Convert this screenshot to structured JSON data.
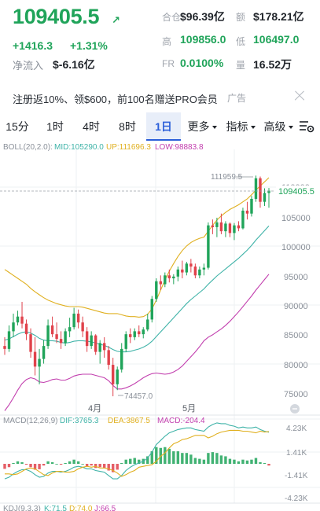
{
  "header": {
    "price": "109405.5",
    "price_arrow": "↗",
    "change_abs": "+1416.3",
    "change_pct": "+1.31%",
    "netflow_label": "净流入",
    "netflow_value": "$-6.16亿"
  },
  "stats": {
    "hold_label": "合仓",
    "hold_value": "$96.39亿",
    "amount_label": "额",
    "amount_value": "$178.21亿",
    "high_label": "高",
    "high_value": "109856.0",
    "low_label": "低",
    "low_value": "106497.0",
    "fr_label": "FR",
    "fr_value": "0.0100%",
    "volume_label": "量",
    "volume_value": "16.52万"
  },
  "ad": {
    "text": "注册返10%、领$600，前100名赠送PRO会员",
    "tag": "广告"
  },
  "tabs": [
    "15分",
    "1时",
    "4时",
    "8时",
    "1日",
    "更多",
    "指标",
    "高级"
  ],
  "active_tab": "1日",
  "boll": {
    "name": "BOLL(20,2.0):",
    "mid": "MID:105290.0",
    "up": "UP:111696.3",
    "low": "LOW:98883.8"
  },
  "price_axis": [
    "110000",
    "105000",
    "100000",
    "95000",
    "90000",
    "85000",
    "80000",
    "75000"
  ],
  "current_price_label": "109405.5",
  "max_label": "111959.5",
  "min_label": "74457.0",
  "date_labels": [
    "4月",
    "5月"
  ],
  "macd": {
    "name": "MACD(12,26,9)",
    "dif": "DIF:3765.3",
    "dea": "DEA:3867.5",
    "macd": "MACD:-204.4",
    "axis": [
      "4.23K",
      "1.41K",
      "-1.41K",
      "-4.23K"
    ]
  },
  "kdj": {
    "name": "KDJ(9,3,3)",
    "k": "K:71.5",
    "d": "D:74.0",
    "j": "J:66.5"
  },
  "colors": {
    "up": "#20a45a",
    "down": "#e0424b",
    "mid": "#3fb3a8",
    "upper": "#e0b020",
    "lower": "#c23fae",
    "accent": "#2b5fd9"
  },
  "chart_data": {
    "type": "candlestick",
    "ohlc": [
      [
        83000,
        84500,
        81500,
        82500
      ],
      [
        82500,
        86500,
        82000,
        85500
      ],
      [
        85500,
        88500,
        84500,
        87000
      ],
      [
        87000,
        89000,
        86500,
        88000
      ],
      [
        88000,
        90500,
        86000,
        86800
      ],
      [
        86800,
        87500,
        84000,
        85000
      ],
      [
        85000,
        86000,
        81000,
        82000
      ],
      [
        82000,
        84500,
        78000,
        79500
      ],
      [
        79500,
        82500,
        76500,
        80800
      ],
      [
        80800,
        84000,
        80000,
        83000
      ],
      [
        83000,
        87500,
        82500,
        86500
      ],
      [
        86500,
        88000,
        84500,
        85000
      ],
      [
        85000,
        87000,
        83500,
        84200
      ],
      [
        84200,
        85500,
        82500,
        83500
      ],
      [
        83500,
        86000,
        83000,
        85500
      ],
      [
        85500,
        87800,
        84500,
        86200
      ],
      [
        86200,
        89500,
        85800,
        88500
      ],
      [
        88500,
        89200,
        86000,
        87000
      ],
      [
        87000,
        88000,
        84500,
        85500
      ],
      [
        85500,
        86200,
        82000,
        83000
      ],
      [
        83000,
        85500,
        82500,
        84800
      ],
      [
        84800,
        85000,
        81500,
        82000
      ],
      [
        82000,
        84000,
        80000,
        83500
      ],
      [
        83500,
        84500,
        81000,
        82300
      ],
      [
        82300,
        83000,
        79000,
        79800
      ],
      [
        79800,
        81000,
        74457,
        76500
      ],
      [
        76500,
        79500,
        75500,
        79000
      ],
      [
        79000,
        83500,
        78500,
        82500
      ],
      [
        82500,
        85500,
        82000,
        85000
      ],
      [
        85000,
        86000,
        83500,
        84500
      ],
      [
        84500,
        86000,
        84000,
        85500
      ],
      [
        85500,
        86500,
        84500,
        85000
      ],
      [
        85000,
        86200,
        84300,
        85800
      ],
      [
        85800,
        88500,
        85500,
        87500
      ],
      [
        87500,
        91500,
        87000,
        91000
      ],
      [
        91000,
        94500,
        90500,
        94000
      ],
      [
        94000,
        95000,
        92500,
        93500
      ],
      [
        93500,
        95500,
        93000,
        95000
      ],
      [
        95000,
        96000,
        93800,
        94500
      ],
      [
        94500,
        95200,
        93500,
        94800
      ],
      [
        94800,
        96500,
        94000,
        96000
      ],
      [
        96000,
        97500,
        94500,
        95500
      ],
      [
        95500,
        97300,
        95000,
        97000
      ],
      [
        97000,
        97800,
        95500,
        96500
      ],
      [
        96500,
        97000,
        94500,
        95000
      ],
      [
        95000,
        96500,
        94500,
        96000
      ],
      [
        96000,
        97000,
        95000,
        96300
      ],
      [
        96300,
        104000,
        96000,
        103500
      ],
      [
        103500,
        104500,
        102000,
        103200
      ],
      [
        103200,
        104800,
        101500,
        104000
      ],
      [
        104000,
        105500,
        102000,
        102500
      ],
      [
        102500,
        104200,
        101500,
        103800
      ],
      [
        103800,
        104000,
        101500,
        102200
      ],
      [
        102200,
        103900,
        101000,
        103500
      ],
      [
        103500,
        104200,
        102500,
        103000
      ],
      [
        103000,
        106500,
        102800,
        106000
      ],
      [
        106000,
        107500,
        104500,
        105500
      ],
      [
        105500,
        108500,
        105000,
        108000
      ],
      [
        108000,
        111959.5,
        107500,
        111500
      ],
      [
        111500,
        111800,
        106500,
        107500
      ],
      [
        107500,
        109800,
        106800,
        109000
      ],
      [
        109000,
        109856,
        106497,
        109405.5
      ]
    ],
    "boll_mid": [
      84000,
      84200,
      84600,
      85000,
      85300,
      85400,
      85200,
      84800,
      84300,
      84000,
      83900,
      83900,
      83800,
      83600,
      83500,
      83600,
      83800,
      83900,
      83900,
      83800,
      83700,
      83500,
      83300,
      83100,
      82800,
      82400,
      82100,
      82000,
      82000,
      82100,
      82300,
      82500,
      82800,
      83200,
      83800,
      84600,
      85400,
      86200,
      87000,
      87800,
      88600,
      89400,
      90200,
      90900,
      91500,
      92100,
      92700,
      93500,
      94200,
      94900,
      95500,
      96100,
      96700,
      97300,
      97900,
      98600,
      99300,
      100100,
      101000,
      101800,
      102600,
      103400
    ],
    "boll_up": [
      96000,
      95500,
      95000,
      94500,
      94000,
      93500,
      92800,
      92200,
      91700,
      91200,
      90800,
      90500,
      90200,
      90000,
      89800,
      89700,
      89700,
      89700,
      89600,
      89400,
      89200,
      89000,
      88800,
      88600,
      88500,
      88500,
      88500,
      88300,
      88100,
      88000,
      88000,
      87900,
      88000,
      88400,
      89300,
      90800,
      92500,
      94200,
      95700,
      97000,
      98200,
      99200,
      100000,
      100600,
      101000,
      101300,
      101500,
      102500,
      103500,
      104400,
      105100,
      105700,
      106200,
      106600,
      107000,
      107500,
      108000,
      108700,
      109500,
      110200,
      110900,
      111600
    ],
    "boll_low": [
      72000,
      73000,
      74200,
      75500,
      76600,
      77300,
      77600,
      77400,
      76900,
      76800,
      77000,
      77300,
      77400,
      77200,
      77200,
      77500,
      77900,
      78100,
      78200,
      78200,
      78200,
      78000,
      77800,
      77600,
      77100,
      76300,
      75700,
      75700,
      75900,
      76200,
      76600,
      77100,
      77600,
      78000,
      78300,
      78400,
      78300,
      78200,
      78300,
      78600,
      79000,
      79600,
      80400,
      81200,
      82000,
      82900,
      83900,
      84500,
      84900,
      85400,
      85900,
      86500,
      87200,
      88000,
      88800,
      89700,
      90600,
      91500,
      92500,
      93400,
      94300,
      95200
    ],
    "macd_hist": [
      -600,
      -400,
      100,
      300,
      200,
      -100,
      -400,
      -700,
      -650,
      -200,
      300,
      200,
      0,
      -100,
      100,
      300,
      500,
      300,
      0,
      -300,
      -200,
      -500,
      -400,
      -500,
      -800,
      -1000,
      -700,
      100,
      500,
      600,
      700,
      500,
      600,
      900,
      1500,
      2000,
      1900,
      2000,
      1800,
      1500,
      1500,
      1300,
      1300,
      1100,
      700,
      600,
      500,
      1300,
      1400,
      1300,
      1000,
      900,
      600,
      500,
      300,
      500,
      400,
      500,
      700,
      200,
      100,
      -204.4
    ],
    "macd_dif": [
      -1800,
      -1600,
      -1200,
      -900,
      -700,
      -700,
      -900,
      -1300,
      -1600,
      -1500,
      -1100,
      -900,
      -900,
      -1000,
      -900,
      -700,
      -400,
      -300,
      -400,
      -600,
      -600,
      -800,
      -900,
      -1000,
      -1400,
      -1800,
      -1800,
      -1400,
      -800,
      -400,
      -100,
      100,
      300,
      700,
      1400,
      2300,
      2800,
      3300,
      3700,
      3900,
      4100,
      4200,
      4300,
      4300,
      4100,
      4000,
      3900,
      4400,
      4700,
      4900,
      4800,
      4800,
      4600,
      4500,
      4300,
      4400,
      4300,
      4300,
      4400,
      4100,
      3900,
      3765.3
    ],
    "macd_dea": [
      -1200,
      -1200,
      -1300,
      -1200,
      -900,
      -600,
      -500,
      -600,
      -950,
      -1300,
      -1400,
      -1100,
      -900,
      -900,
      -1000,
      -1000,
      -900,
      -600,
      -400,
      -300,
      -400,
      -300,
      -500,
      -500,
      -600,
      -800,
      -1100,
      -1500,
      -1300,
      -1000,
      -800,
      -400,
      -300,
      -200,
      -100,
      300,
      900,
      1300,
      1900,
      2400,
      2600,
      2900,
      3000,
      3200,
      3400,
      3400,
      3400,
      3100,
      3300,
      3600,
      3800,
      3900,
      4000,
      4000,
      4000,
      3900,
      3900,
      3800,
      3700,
      3900,
      3800,
      3867.5
    ]
  }
}
